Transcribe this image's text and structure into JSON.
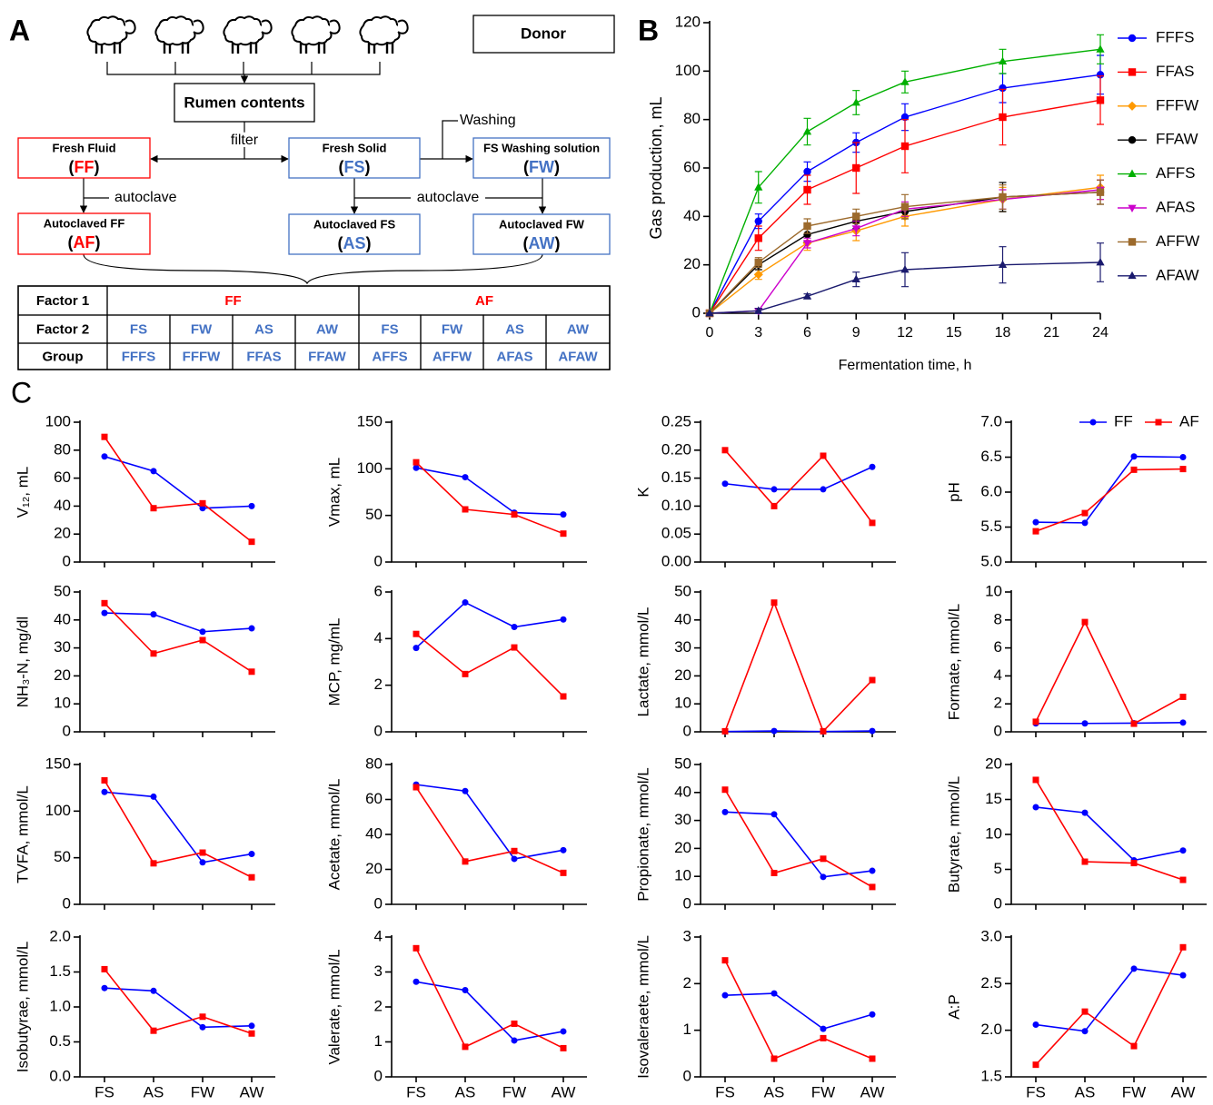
{
  "panels": {
    "a": "A",
    "b": "B",
    "c": "C"
  },
  "diagram": {
    "donor": "Donor",
    "rumen": "Rumen contents",
    "filter": "filter",
    "washing": "Washing",
    "autoclave_1": "autoclave",
    "autoclave_2": "autoclave",
    "nodes": [
      {
        "label": "Fresh Fluid",
        "code": [
          "(",
          "FF",
          ")"
        ]
      },
      {
        "label": "Fresh Solid",
        "code": [
          "(",
          "FS",
          ")"
        ]
      },
      {
        "label": "FS Washing solution",
        "code": [
          "(",
          "FW",
          ")"
        ]
      },
      {
        "label": "Autoclaved FF",
        "code": [
          "(",
          "AF",
          ")"
        ]
      },
      {
        "label": "Autoclaved FS",
        "code": [
          "(",
          "AS",
          ")"
        ]
      },
      {
        "label": "Autoclaved FW",
        "code": [
          "(",
          "AW",
          ")"
        ]
      }
    ],
    "table": {
      "rows": [
        [
          "Factor 1",
          "FF",
          "AF"
        ],
        [
          "Factor 2",
          "FS",
          "FW",
          "AS",
          "AW",
          "FS",
          "FW",
          "AS",
          "AW"
        ],
        [
          "Group",
          "FFFS",
          "FFFW",
          "FFAS",
          "FFAW",
          "AFFS",
          "AFFW",
          "AFAS",
          "AFAW"
        ]
      ]
    }
  },
  "chart_data": [
    {
      "type": "line",
      "xlabel": "Fermentation time, h",
      "ylabel": "Gas production, mL",
      "x": [
        0,
        3,
        6,
        9,
        12,
        18,
        24
      ],
      "xlim": [
        0,
        24
      ],
      "xticks": [
        0,
        3,
        6,
        9,
        12,
        15,
        18,
        21,
        24
      ],
      "ylim": [
        0,
        120
      ],
      "yticks": [
        0,
        20,
        40,
        60,
        80,
        100,
        120
      ],
      "legend": "right",
      "series": [
        {
          "name": "FFFS",
          "color": "#0000ff",
          "marker": "circle",
          "values": [
            0,
            38,
            58.5,
            70.5,
            81,
            93,
            98.5
          ],
          "errors": [
            0,
            3,
            4,
            4,
            5.5,
            6,
            8
          ]
        },
        {
          "name": "FFAS",
          "color": "#ff0000",
          "marker": "square",
          "values": [
            0,
            31,
            51,
            60,
            69,
            81,
            88
          ],
          "errors": [
            0,
            5,
            6,
            10.5,
            11,
            11.5,
            10
          ]
        },
        {
          "name": "FFFW",
          "color": "#ff9900",
          "marker": "diamond",
          "values": [
            0,
            16,
            29,
            34,
            40,
            47,
            52
          ],
          "errors": [
            0,
            2,
            3,
            4,
            4,
            5,
            5
          ]
        },
        {
          "name": "FFAW",
          "color": "#000000",
          "marker": "circle",
          "values": [
            0,
            20,
            32.5,
            38,
            42,
            48,
            50
          ],
          "errors": [
            0,
            2,
            3,
            3,
            3,
            6,
            5
          ]
        },
        {
          "name": "AFFS",
          "color": "#00b000",
          "marker": "triangle",
          "values": [
            0,
            52,
            75,
            87,
            95.5,
            104,
            109
          ],
          "errors": [
            0,
            6.5,
            5.5,
            5,
            4.5,
            5,
            6
          ]
        },
        {
          "name": "AFAS",
          "color": "#cc00cc",
          "marker": "triangle-down",
          "values": [
            0,
            1,
            29,
            35,
            43,
            47,
            51
          ],
          "errors": [
            0,
            1,
            2,
            3,
            3,
            4,
            4
          ]
        },
        {
          "name": "AFFW",
          "color": "#9c6a2c",
          "marker": "square",
          "values": [
            0,
            21,
            36,
            40,
            44,
            48,
            50
          ],
          "errors": [
            0,
            2,
            3,
            3,
            5,
            5,
            5
          ]
        },
        {
          "name": "AFAW",
          "color": "#1a1a6e",
          "marker": "triangle",
          "values": [
            0,
            1,
            7,
            14,
            18,
            20,
            21
          ],
          "errors": [
            0,
            1,
            1,
            3,
            7,
            7.5,
            8
          ]
        }
      ]
    },
    {
      "type": "line",
      "ylabel": "V₁₂,  mL",
      "categories": [
        null,
        null,
        null,
        null
      ],
      "ylim": [
        0,
        100
      ],
      "yticks": [
        0,
        20,
        40,
        60,
        80,
        100
      ],
      "series": [
        {
          "color": "#0000ff",
          "marker": "circle",
          "values": [
            75.5,
            65,
            38.5,
            40
          ]
        },
        {
          "color": "#ff0000",
          "marker": "square",
          "values": [
            89.5,
            38.5,
            42,
            14.5
          ]
        }
      ]
    },
    {
      "type": "line",
      "ylabel": "Vmax, mL",
      "categories": [
        null,
        null,
        null,
        null
      ],
      "ylim": [
        0,
        150
      ],
      "yticks": [
        0,
        50,
        100,
        150
      ],
      "series": [
        {
          "color": "#0000ff",
          "marker": "circle",
          "values": [
            101,
            91,
            53,
            51
          ]
        },
        {
          "color": "#ff0000",
          "marker": "square",
          "values": [
            107,
            56.5,
            51,
            30.5
          ]
        }
      ]
    },
    {
      "type": "line",
      "ylabel": "K",
      "categories": [
        null,
        null,
        null,
        null
      ],
      "ylim": [
        0,
        0.25
      ],
      "yticks": [
        {
          "value": 0,
          "label": "0.00"
        },
        0.05,
        {
          "value": 0.1,
          "label": "0.10"
        },
        0.15,
        {
          "value": 0.2,
          "label": "0.20"
        },
        0.25
      ],
      "series": [
        {
          "color": "#0000ff",
          "marker": "circle",
          "values": [
            0.14,
            0.13,
            0.13,
            0.17
          ]
        },
        {
          "color": "#ff0000",
          "marker": "square",
          "values": [
            0.2,
            0.1,
            0.19,
            0.07
          ]
        }
      ]
    },
    {
      "type": "line",
      "ylabel": "pH",
      "categories": [
        null,
        null,
        null,
        null
      ],
      "ylim": [
        5,
        7
      ],
      "yticks": [
        {
          "value": 5,
          "label": "5.0"
        },
        5.5,
        {
          "value": 6,
          "label": "6.0"
        },
        6.5,
        {
          "value": 7,
          "label": "7.0"
        }
      ],
      "legend": "upper right",
      "series": [
        {
          "name": "FF",
          "color": "#0000ff",
          "marker": "circle",
          "values": [
            5.57,
            5.56,
            6.51,
            6.5
          ]
        },
        {
          "name": "AF",
          "color": "#ff0000",
          "marker": "square",
          "values": [
            5.44,
            5.7,
            6.32,
            6.33
          ]
        }
      ]
    },
    {
      "type": "line",
      "ylabel": "NH₃-N, mg/dl",
      "categories": [
        null,
        null,
        null,
        null
      ],
      "ylim": [
        0,
        50
      ],
      "yticks": [
        0,
        10,
        20,
        30,
        40,
        50
      ],
      "series": [
        {
          "color": "#0000ff",
          "marker": "circle",
          "values": [
            42.5,
            42,
            35.8,
            37
          ]
        },
        {
          "color": "#ff0000",
          "marker": "square",
          "values": [
            46,
            28,
            32.8,
            21.5
          ]
        }
      ]
    },
    {
      "type": "line",
      "ylabel": "MCP,  mg/mL",
      "categories": [
        null,
        null,
        null,
        null
      ],
      "ylim": [
        0,
        6
      ],
      "yticks": [
        0,
        2,
        4,
        6
      ],
      "series": [
        {
          "color": "#0000ff",
          "marker": "circle",
          "values": [
            3.6,
            5.55,
            4.5,
            4.82
          ]
        },
        {
          "color": "#ff0000",
          "marker": "square",
          "values": [
            4.2,
            2.48,
            3.62,
            1.52
          ]
        }
      ]
    },
    {
      "type": "line",
      "ylabel": "Lactate,  mmol/L",
      "categories": [
        null,
        null,
        null,
        null
      ],
      "ylim": [
        0,
        50
      ],
      "yticks": [
        0,
        10,
        20,
        30,
        40,
        50
      ],
      "series": [
        {
          "color": "#0000ff",
          "marker": "circle",
          "values": [
            0.1,
            0.3,
            0.1,
            0.3
          ]
        },
        {
          "color": "#ff0000",
          "marker": "square",
          "values": [
            0.2,
            46.2,
            0.2,
            18.5
          ]
        }
      ]
    },
    {
      "type": "line",
      "ylabel": "Formate,  mmol/L",
      "categories": [
        null,
        null,
        null,
        null
      ],
      "ylim": [
        0,
        10
      ],
      "yticks": [
        0,
        2,
        4,
        6,
        8,
        10
      ],
      "series": [
        {
          "color": "#0000ff",
          "marker": "circle",
          "values": [
            0.6,
            0.6,
            0.62,
            0.66
          ]
        },
        {
          "color": "#ff0000",
          "marker": "square",
          "values": [
            0.72,
            7.85,
            0.58,
            2.5
          ]
        }
      ]
    },
    {
      "type": "line",
      "ylabel": "TVFA, mmol/L",
      "categories": [
        null,
        null,
        null,
        null
      ],
      "ylim": [
        0,
        150
      ],
      "yticks": [
        0,
        50,
        100,
        150
      ],
      "series": [
        {
          "color": "#0000ff",
          "marker": "circle",
          "values": [
            120.5,
            115.5,
            45,
            54
          ]
        },
        {
          "color": "#ff0000",
          "marker": "square",
          "values": [
            133,
            44,
            55.5,
            29
          ]
        }
      ]
    },
    {
      "type": "line",
      "ylabel": "Acetate, mmol/L",
      "categories": [
        null,
        null,
        null,
        null
      ],
      "ylim": [
        0,
        80
      ],
      "yticks": [
        0,
        20,
        40,
        60,
        80
      ],
      "series": [
        {
          "color": "#0000ff",
          "marker": "circle",
          "values": [
            68.5,
            64.8,
            26,
            31
          ]
        },
        {
          "color": "#ff0000",
          "marker": "square",
          "values": [
            67,
            24.5,
            30.5,
            18
          ]
        }
      ]
    },
    {
      "type": "line",
      "ylabel": "Propionate, mmol/L",
      "categories": [
        null,
        null,
        null,
        null
      ],
      "ylim": [
        0,
        50
      ],
      "yticks": [
        0,
        10,
        20,
        30,
        40,
        50
      ],
      "series": [
        {
          "color": "#0000ff",
          "marker": "circle",
          "values": [
            33,
            32.2,
            9.8,
            12
          ]
        },
        {
          "color": "#ff0000",
          "marker": "square",
          "values": [
            41,
            11.2,
            16.3,
            6.2
          ]
        }
      ]
    },
    {
      "type": "line",
      "ylabel": "Butyrate, mmol/L",
      "categories": [
        null,
        null,
        null,
        null
      ],
      "ylim": [
        0,
        20
      ],
      "yticks": [
        0,
        5,
        10,
        15,
        20
      ],
      "series": [
        {
          "color": "#0000ff",
          "marker": "circle",
          "values": [
            13.9,
            13.1,
            6.3,
            7.7
          ]
        },
        {
          "color": "#ff0000",
          "marker": "square",
          "values": [
            17.8,
            6.1,
            5.9,
            3.5
          ]
        }
      ]
    },
    {
      "type": "line",
      "ylabel": "Isobutyrae, mmol/L",
      "categories": [
        "FS",
        "AS",
        "FW",
        "AW"
      ],
      "ylim": [
        0,
        2
      ],
      "yticks": [
        {
          "value": 0,
          "label": "0.0"
        },
        0.5,
        {
          "value": 1,
          "label": "1.0"
        },
        1.5,
        {
          "value": 2,
          "label": "2.0"
        }
      ],
      "series": [
        {
          "color": "#0000ff",
          "marker": "circle",
          "values": [
            1.27,
            1.23,
            0.71,
            0.73
          ]
        },
        {
          "color": "#ff0000",
          "marker": "square",
          "values": [
            1.54,
            0.66,
            0.86,
            0.62
          ]
        }
      ]
    },
    {
      "type": "line",
      "ylabel": "Valerate, mmol/L",
      "categories": [
        "FS",
        "AS",
        "FW",
        "AW"
      ],
      "ylim": [
        0,
        4
      ],
      "yticks": [
        0,
        1,
        2,
        3,
        4
      ],
      "series": [
        {
          "color": "#0000ff",
          "marker": "circle",
          "values": [
            2.72,
            2.48,
            1.04,
            1.3
          ]
        },
        {
          "color": "#ff0000",
          "marker": "square",
          "values": [
            3.68,
            0.86,
            1.52,
            0.82
          ]
        }
      ]
    },
    {
      "type": "line",
      "ylabel": "Isovaleraete, mmol/L",
      "categories": [
        "FS",
        "AS",
        "FW",
        "AW"
      ],
      "ylim": [
        0,
        3
      ],
      "yticks": [
        0,
        1,
        2,
        3
      ],
      "series": [
        {
          "color": "#0000ff",
          "marker": "circle",
          "values": [
            1.75,
            1.79,
            1.03,
            1.34
          ]
        },
        {
          "color": "#ff0000",
          "marker": "square",
          "values": [
            2.5,
            0.39,
            0.83,
            0.39
          ]
        }
      ]
    },
    {
      "type": "line",
      "ylabel": "A:P",
      "categories": [
        "FS",
        "AS",
        "FW",
        "AW"
      ],
      "ylim": [
        1.5,
        3
      ],
      "yticks": [
        1.5,
        {
          "value": 2,
          "label": "2.0"
        },
        2.5,
        {
          "value": 3,
          "label": "3.0"
        }
      ],
      "series": [
        {
          "color": "#0000ff",
          "marker": "circle",
          "values": [
            2.06,
            1.99,
            2.66,
            2.59
          ]
        },
        {
          "color": "#ff0000",
          "marker": "square",
          "values": [
            1.63,
            2.2,
            1.83,
            2.89
          ]
        }
      ]
    }
  ]
}
